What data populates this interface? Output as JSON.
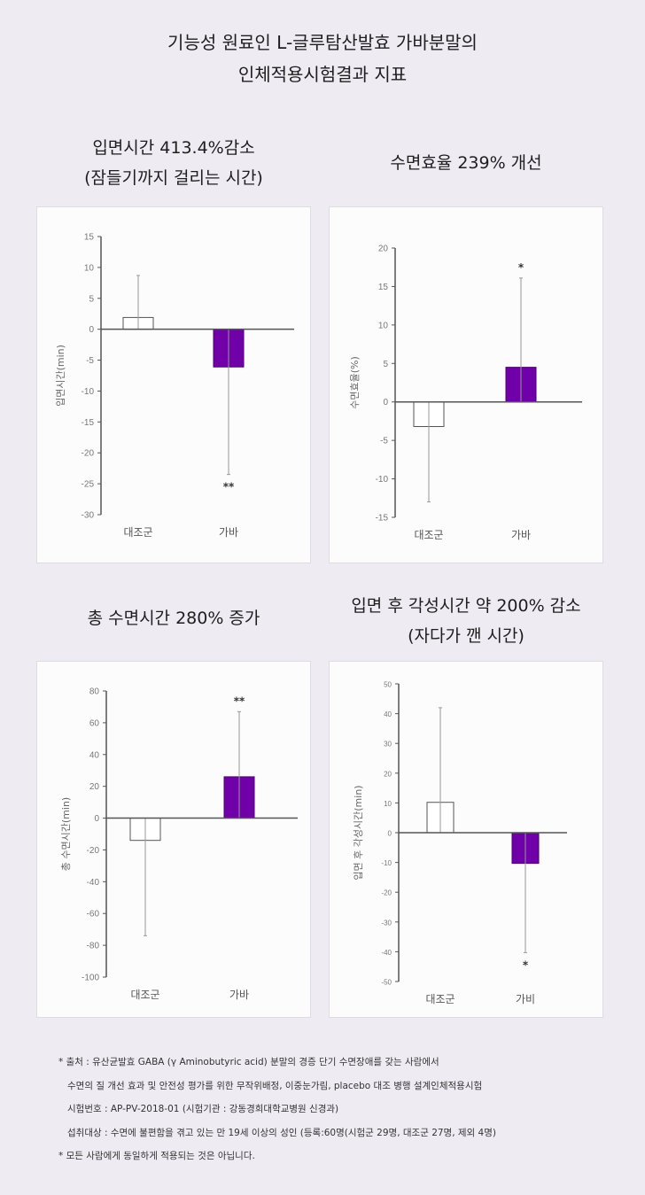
{
  "header": {
    "title_line1": "기능성 원료인 L-글루탐산발효 가바분말의",
    "title_line2": "인체적용시험결과 지표"
  },
  "colors": {
    "background": "#EEEBF2",
    "gaba_bar": "#7000A8",
    "control_bar": "#FFFFFF",
    "axis": "#555555"
  },
  "chart_data": [
    {
      "type": "bar",
      "title_line1": "입면시간 413.4%감소",
      "title_line2": "(잠들기까지 걸리는 시간)",
      "ylabel": "입면시간(min)",
      "categories": [
        "대조군",
        "가바"
      ],
      "values": [
        1.9,
        -6.1
      ],
      "error_ends": [
        8.7,
        -23.5
      ],
      "significance": [
        "",
        "**"
      ],
      "ylim": [
        -30,
        15
      ],
      "yticks": [
        15,
        10,
        5,
        0,
        -5,
        -10,
        -15,
        -20,
        -25,
        -30
      ],
      "grid": false
    },
    {
      "type": "bar",
      "title_line1": "수면효율 239% 개선",
      "title_line2": "",
      "ylabel": "수면효율(%)",
      "categories": [
        "대조군",
        "가바"
      ],
      "values": [
        -3.2,
        4.5
      ],
      "error_ends": [
        -13.0,
        16.1
      ],
      "significance": [
        "",
        "*"
      ],
      "ylim": [
        -15,
        20
      ],
      "yticks": [
        20,
        15,
        10,
        5,
        0,
        -5,
        -10,
        -15
      ],
      "grid": false
    },
    {
      "type": "bar",
      "title_line1": "총 수면시간 280% 증가",
      "title_line2": "",
      "ylabel": "총 수면시간(min)",
      "categories": [
        "대조군",
        "가바"
      ],
      "values": [
        -14,
        26
      ],
      "error_ends": [
        -74,
        67
      ],
      "significance": [
        "",
        "**"
      ],
      "ylim": [
        -100,
        80
      ],
      "yticks": [
        80,
        60,
        40,
        20,
        0,
        -20,
        -40,
        -60,
        -80,
        -100
      ],
      "grid": false
    },
    {
      "type": "bar",
      "title_line1": "입면 후 각성시간 약 200% 감소",
      "title_line2": "(자다가 깬 시간)",
      "ylabel": "입면 후 각성시간(min)",
      "categories": [
        "대조군",
        "가비"
      ],
      "values": [
        10.2,
        -10.3
      ],
      "error_ends": [
        42,
        -40.3
      ],
      "significance": [
        "",
        "*"
      ],
      "ylim": [
        -50,
        50
      ],
      "yticks": [
        50,
        40,
        30,
        20,
        10,
        0,
        -10,
        -20,
        -30,
        -40,
        -50
      ],
      "grid": false
    }
  ],
  "footnotes": [
    "* 출처 : 유산균발효 GABA (γ Aminobutyric acid) 분말의 경증 단기 수면장애를 갖는 사람에서",
    "수면의 질 개선 효과 및 안전성 평가를 위한 무작위배정, 이중눈가림, placebo 대조 병행 설계인체적용시험",
    "시험번호 : AP-PV-2018-01 (시험기관 : 강동경희대학교병원 신경과)",
    "섭취대상 : 수면에 불편함을 겪고 있는 만 19세 이상의 성인 (등록:60명(시험군 29명, 대조군 27명, 제외 4명)",
    "* 모든 사람에게 동일하게 적용되는 것은 아닙니다."
  ]
}
